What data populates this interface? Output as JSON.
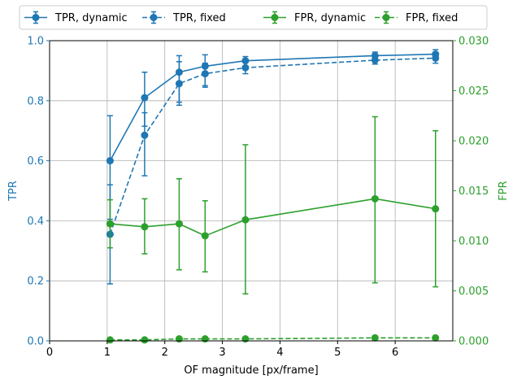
{
  "chart_data": {
    "type": "line",
    "xlabel": "OF magnitude [px/frame]",
    "ylabel_left": "TPR",
    "ylabel_right": "FPR",
    "xlim": [
      0,
      7
    ],
    "ylim_left": [
      0,
      1.0
    ],
    "ylim_right": [
      0,
      0.03
    ],
    "xticks": [
      0,
      1,
      2,
      3,
      4,
      5,
      6
    ],
    "xtick_labels": [
      "0",
      "1",
      "2",
      "3",
      "4",
      "5",
      "6"
    ],
    "yticks_left": [
      0,
      0.2,
      0.4,
      0.6,
      0.8,
      1.0
    ],
    "ytick_labels_left": [
      "0.0",
      "0.2",
      "0.4",
      "0.6",
      "0.8",
      "1.0"
    ],
    "yticks_right": [
      0,
      0.005,
      0.01,
      0.015,
      0.02,
      0.025,
      0.03
    ],
    "ytick_labels_right": [
      "0.000",
      "0.005",
      "0.010",
      "0.015",
      "0.020",
      "0.025",
      "0.030"
    ],
    "grid": true,
    "legend_position": "top, outside plot, single row",
    "colors": {
      "tpr": "#1f77b4",
      "fpr": "#2ca02c"
    },
    "x": [
      1.05,
      1.65,
      2.25,
      2.7,
      3.4,
      5.65,
      6.7
    ],
    "series": [
      {
        "name": "TPR, dynamic",
        "axis": "left",
        "style": "solid",
        "color": "#1f77b4",
        "values": [
          0.6,
          0.81,
          0.895,
          0.915,
          0.933,
          0.95,
          0.955
        ],
        "err_low": [
          0.405,
          0.715,
          0.795,
          0.845,
          0.913,
          0.938,
          0.94
        ],
        "err_high": [
          0.75,
          0.895,
          0.95,
          0.953,
          0.947,
          0.962,
          0.97
        ]
      },
      {
        "name": "TPR, fixed",
        "axis": "left",
        "style": "dashed",
        "color": "#1f77b4",
        "values": [
          0.355,
          0.685,
          0.857,
          0.89,
          0.91,
          0.935,
          0.942
        ],
        "err_low": [
          0.19,
          0.55,
          0.785,
          0.85,
          0.89,
          0.922,
          0.925
        ],
        "err_high": [
          0.52,
          0.76,
          0.93,
          0.925,
          0.93,
          0.948,
          0.958
        ]
      },
      {
        "name": "FPR, dynamic",
        "axis": "right",
        "style": "solid",
        "color": "#2ca02c",
        "values": [
          0.0117,
          0.0114,
          0.0117,
          0.0105,
          0.0121,
          0.0142,
          0.0132
        ],
        "err_low": [
          0.0093,
          0.0087,
          0.0071,
          0.0069,
          0.0047,
          0.0058,
          0.0054
        ],
        "err_high": [
          0.0141,
          0.0142,
          0.0162,
          0.014,
          0.0196,
          0.0224,
          0.021
        ]
      },
      {
        "name": "FPR, fixed",
        "axis": "right",
        "style": "dashed",
        "color": "#2ca02c",
        "values": [
          0.0001,
          0.0001,
          0.0002,
          0.0002,
          0.0002,
          0.0003,
          0.0003
        ],
        "err_low": [
          0.0001,
          0.0001,
          0.0002,
          0.0002,
          0.0002,
          0.0003,
          0.0003
        ],
        "err_high": [
          0.0001,
          0.0001,
          0.0002,
          0.0002,
          0.0002,
          0.0003,
          0.0003
        ]
      }
    ]
  }
}
